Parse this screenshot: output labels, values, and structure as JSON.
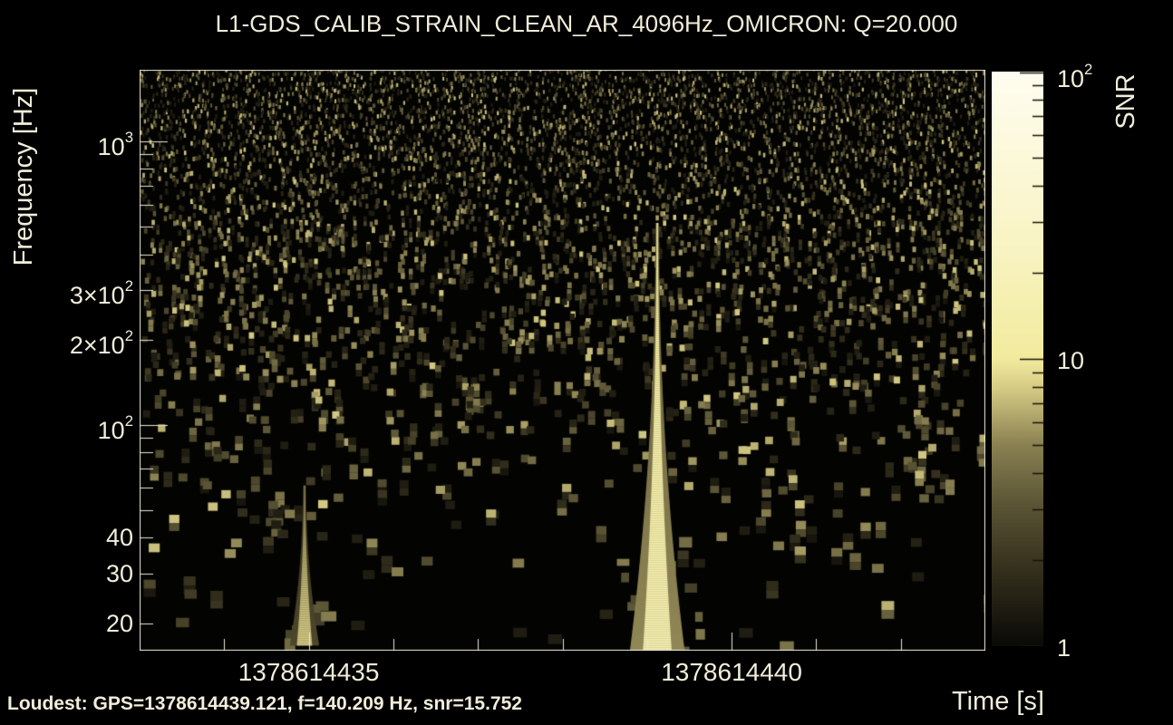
{
  "window": {
    "background": "#000000",
    "ink_color": "#f1edda"
  },
  "chart_data": {
    "type": "heatmap",
    "subtype": "omicron-q-transform-spectrogram",
    "title": "L1-GDS_CALIB_STRAIN_CLEAN_AR_4096Hz_OMICRON: Q=20.000",
    "xlabel": "Time [s]",
    "ylabel": "Frequency [Hz]",
    "colorbar_label": "SNR",
    "annotation": "Loudest: GPS=1378614439.121, f=140.209 Hz, snr=15.752",
    "x_range_gps": [
      1378614433,
      1378614443
    ],
    "y_range_hz": [
      16,
      1790
    ],
    "y_scale": "log",
    "snr_range": [
      1,
      100
    ],
    "snr_scale": "log",
    "grid": false,
    "xticks": {
      "labeled": [
        {
          "t": 1378614435,
          "label": "1378614435"
        },
        {
          "t": 1378614440,
          "label": "1378614440"
        }
      ],
      "minor_step_s": 1
    },
    "yticks": {
      "labeled": [
        {
          "f": 1000,
          "base": "10",
          "exp": "3"
        },
        {
          "f": 300,
          "base": "3×10",
          "exp": "2"
        },
        {
          "f": 200,
          "base": "2×10",
          "exp": "2"
        },
        {
          "f": 100,
          "base": "10",
          "exp": "2"
        },
        {
          "f": 40,
          "base": "40"
        },
        {
          "f": 30,
          "base": "30"
        },
        {
          "f": 20,
          "base": "20"
        }
      ],
      "major": [
        100,
        1000
      ],
      "minor": [
        20,
        30,
        40,
        50,
        60,
        70,
        80,
        90,
        200,
        300,
        400,
        500,
        600,
        700,
        800,
        900
      ]
    },
    "colorbar_ticks": {
      "labeled": [
        {
          "v": 100,
          "base": "10",
          "exp": "2"
        },
        {
          "v": 10,
          "base": "10"
        },
        {
          "v": 1,
          "base": "1"
        }
      ],
      "minor": [
        2,
        3,
        4,
        5,
        6,
        7,
        8,
        9,
        20,
        30,
        40,
        50,
        60,
        70,
        80,
        90
      ]
    },
    "colormap_stops": [
      [
        0.0,
        "#0a0a06"
      ],
      [
        0.15,
        "#3a3520"
      ],
      [
        0.25,
        "#5c5636"
      ],
      [
        0.35,
        "#8a8152"
      ],
      [
        0.45,
        "#d6cc85"
      ],
      [
        0.5,
        "#f2eb9e"
      ],
      [
        0.7,
        "#f9f4c4"
      ],
      [
        1.0,
        "#fffdf0"
      ]
    ],
    "events": [
      {
        "gps": 1378614439.121,
        "f_hz": 140.209,
        "snr": 15.752,
        "f_lo_hz": 16,
        "f_hi_hz": 520
      },
      {
        "gps": 1378614434.95,
        "f_hz": 25.0,
        "snr": 7.8,
        "f_lo_hz": 17,
        "f_hi_hz": 62
      }
    ],
    "noise_seed": 20
  }
}
